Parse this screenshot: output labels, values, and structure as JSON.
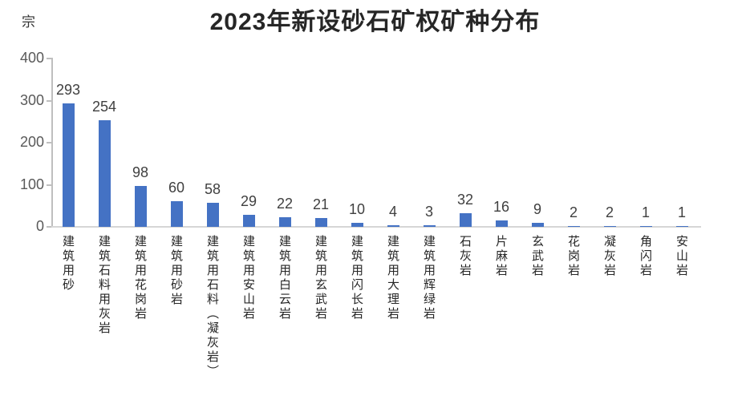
{
  "title": "2023年新设砂石矿权矿种分布",
  "y_axis": {
    "unit_label": "宗",
    "ticks": [
      0,
      100,
      200,
      300,
      400
    ]
  },
  "colors": {
    "bar": "#4472c4",
    "axis_line": "#bfbfbf",
    "baseline": "#d6d6d6",
    "tick_label": "#595959",
    "value_label": "#404040",
    "category_label": "#262626",
    "title": "#262626"
  },
  "chart_data": {
    "type": "bar",
    "title": "2023年新设砂石矿权矿种分布",
    "ylabel": "宗",
    "xlabel": "",
    "ylim": [
      0,
      400
    ],
    "yticks": [
      0,
      100,
      200,
      300,
      400
    ],
    "grid": false,
    "legend": "none",
    "bar_color": "#4472c4",
    "categories": [
      "建筑用砂",
      "建筑石料用灰岩",
      "建筑用花岗岩",
      "建筑用砂岩",
      "建筑用石料（凝灰岩）",
      "建筑用安山岩",
      "建筑用白云岩",
      "建筑用玄武岩",
      "建筑用闪长岩",
      "建筑用大理岩",
      "建筑用辉绿岩",
      "石灰岩",
      "片麻岩",
      "玄武岩",
      "花岗岩",
      "凝灰岩",
      "角闪岩",
      "安山岩"
    ],
    "values": [
      293,
      254,
      98,
      60,
      58,
      29,
      22,
      21,
      10,
      4,
      3,
      32,
      16,
      9,
      2,
      2,
      1,
      1
    ]
  }
}
